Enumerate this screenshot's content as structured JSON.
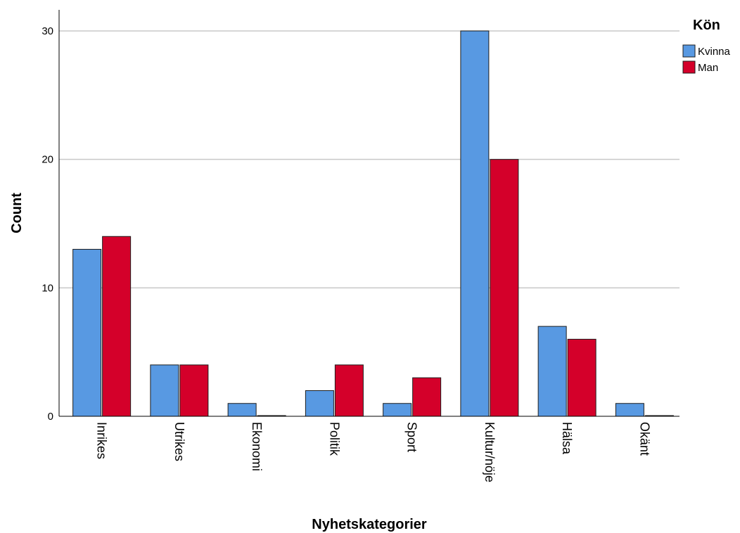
{
  "chart_data": {
    "type": "bar",
    "categories": [
      "Inrikes",
      "Utrikes",
      "Ekonomi",
      "Politik",
      "Sport",
      "Kultur/nöje",
      "Hälsa",
      "Okänt"
    ],
    "series": [
      {
        "name": "Kvinna",
        "color": "#5899e2",
        "values": [
          13,
          4,
          1,
          2,
          1,
          30,
          7,
          1
        ]
      },
      {
        "name": "Man",
        "color": "#d4002a",
        "values": [
          14,
          4,
          0,
          4,
          3,
          20,
          6,
          0
        ]
      }
    ],
    "xlabel": "Nyhetskategorier",
    "ylabel": "Count",
    "ylim": [
      0,
      30
    ],
    "yticks": [
      "0",
      "10",
      "20",
      "30"
    ],
    "grid": true,
    "legend": {
      "title": "Kön",
      "placement": "top-right"
    }
  }
}
